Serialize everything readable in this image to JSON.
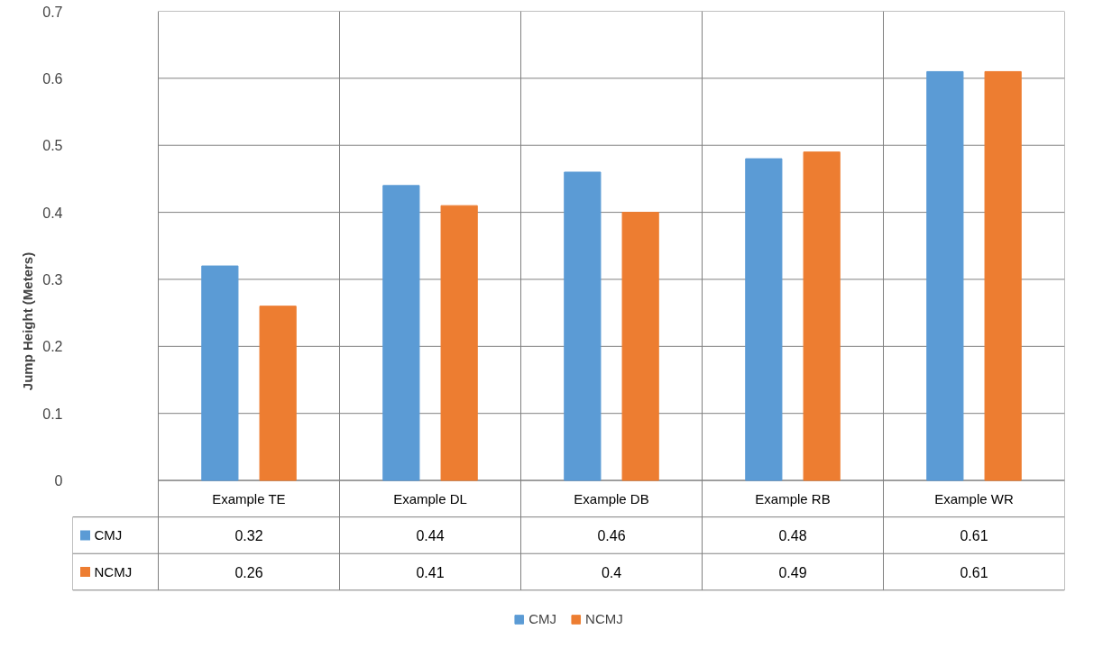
{
  "chart_data": {
    "type": "bar",
    "ylabel": "Jump Height (Meters)",
    "categories": [
      "Example TE",
      "Example DL",
      "Example DB",
      "Example RB",
      "Example WR"
    ],
    "series": [
      {
        "name": "CMJ",
        "color": "#5b9bd5",
        "values": [
          0.32,
          0.44,
          0.46,
          0.48,
          0.61
        ]
      },
      {
        "name": "NCMJ",
        "color": "#ed7d31",
        "values": [
          0.26,
          0.41,
          0.4,
          0.49,
          0.61
        ]
      }
    ],
    "ylim": [
      0,
      0.7
    ],
    "yticks": [
      0,
      0.1,
      0.2,
      0.3,
      0.4,
      0.5,
      0.6,
      0.7
    ],
    "grid": true,
    "legend": "bottom",
    "data_labels": true
  }
}
